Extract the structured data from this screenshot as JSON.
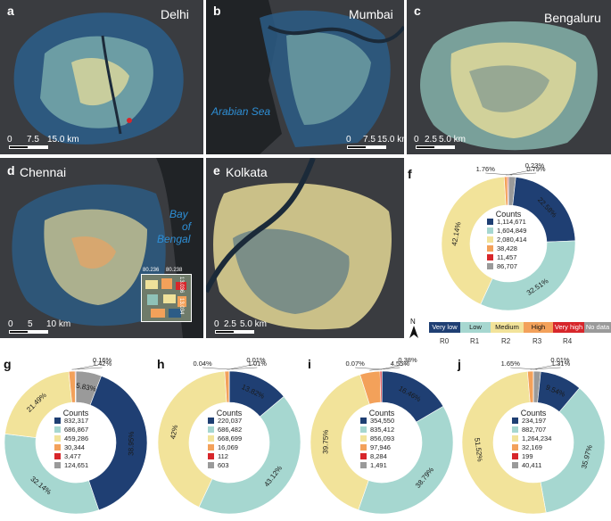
{
  "panels": {
    "a": {
      "letter": "a",
      "city": "Delhi",
      "scale": {
        "zero": "0",
        "mid": "7.5",
        "end": "15.0 km"
      }
    },
    "b": {
      "letter": "b",
      "city": "Mumbai",
      "sea": "Arabian Sea",
      "scale": {
        "zero": "0",
        "mid": "7.5",
        "end": "15.0 km"
      }
    },
    "c": {
      "letter": "c",
      "city": "Bengaluru",
      "scale": {
        "zero": "0",
        "mid": "2.5",
        "end": "5.0 km"
      }
    },
    "d": {
      "letter": "d",
      "city": "Chennai",
      "sea_line1": "Bay",
      "sea_line2": "of",
      "sea_line3": "Bengal",
      "scale": {
        "zero": "0",
        "mid": "5",
        "end": "10 km"
      },
      "inset": {
        "lon1": "80.236",
        "lon2": "80.238",
        "lat1": "13.036",
        "lat2": "13.034"
      }
    },
    "e": {
      "letter": "e",
      "city": "Kolkata",
      "scale": {
        "zero": "0",
        "mid": "2.5",
        "end": "5.0 km"
      }
    }
  },
  "north": "N",
  "legend": {
    "items": [
      {
        "label": "Very low",
        "color": "#1f3f73",
        "text_color": "#ffffff",
        "sub": "R0"
      },
      {
        "label": "Low",
        "color": "#a6d7d0",
        "text_color": "#111111",
        "sub": "R1"
      },
      {
        "label": "Medium",
        "color": "#f2e39a",
        "text_color": "#111111",
        "sub": "R2"
      },
      {
        "label": "High",
        "color": "#f3a15a",
        "text_color": "#111111",
        "sub": "R3"
      },
      {
        "label": "Very high",
        "color": "#d7262b",
        "text_color": "#ffffff",
        "sub": "R4"
      },
      {
        "label": "No data",
        "color": "#9a9a9a",
        "text_color": "#ffffff",
        "sub": ""
      }
    ]
  },
  "chart_data": [
    {
      "panel": "f",
      "type": "pie",
      "title": "Counts",
      "categories": [
        "Very low",
        "Low",
        "Medium",
        "High",
        "Very high",
        "No data"
      ],
      "counts": [
        "1,114,671",
        "1,604,849",
        "2,080,414",
        "38,428",
        "11,457",
        "86,707"
      ],
      "percents": [
        22.58,
        32.51,
        42.14,
        0.79,
        0.23,
        1.76
      ],
      "labels": [
        "22.58%",
        "32.51%",
        "42.14%",
        "0.79%",
        "0.23%",
        "1.76%"
      ]
    },
    {
      "panel": "g",
      "type": "pie",
      "title": "Counts",
      "categories": [
        "Very low",
        "Low",
        "Medium",
        "High",
        "Very high",
        "No data"
      ],
      "counts": [
        "832,317",
        "686,867",
        "459,286",
        "30,344",
        "3,477",
        "124,651"
      ],
      "percents": [
        38.95,
        32.14,
        21.49,
        1.42,
        0.16,
        5.83
      ],
      "labels": [
        "38.95%",
        "32.14%",
        "21.49%",
        "1.42%",
        "0.16%",
        "5.83%"
      ]
    },
    {
      "panel": "h",
      "type": "pie",
      "title": "Counts",
      "categories": [
        "Very low",
        "Low",
        "Medium",
        "High",
        "Very high",
        "No data"
      ],
      "counts": [
        "220,037",
        "686,482",
        "668,699",
        "16,069",
        "112",
        "603"
      ],
      "percents": [
        13.82,
        43.12,
        42,
        1.01,
        0.01,
        0.04
      ],
      "labels": [
        "13.82%",
        "43.12%",
        "42%",
        "1.01%",
        "0.01%",
        "0.04%"
      ]
    },
    {
      "panel": "i",
      "type": "pie",
      "title": "Counts",
      "categories": [
        "Very low",
        "Low",
        "Medium",
        "High",
        "Very high",
        "No data"
      ],
      "counts": [
        "354,550",
        "835,412",
        "856,093",
        "97,946",
        "8,284",
        "1,491"
      ],
      "percents": [
        16.46,
        38.79,
        39.75,
        4.55,
        0.38,
        0.07
      ],
      "labels": [
        "16.46%",
        "38.79%",
        "39.75%",
        "4.55%",
        "0.38%",
        "0.07%"
      ]
    },
    {
      "panel": "j",
      "type": "pie",
      "title": "Counts",
      "categories": [
        "Very low",
        "Low",
        "Medium",
        "High",
        "Very high",
        "No data"
      ],
      "counts": [
        "234,197",
        "882,707",
        "1,264,234",
        "32,169",
        "199",
        "40,411"
      ],
      "percents": [
        9.54,
        35.97,
        51.52,
        1.31,
        0.01,
        1.65
      ],
      "labels": [
        "9.54%",
        "35.97%",
        "51.52%",
        "1.31%",
        "0.01%",
        "1.65%"
      ]
    }
  ]
}
